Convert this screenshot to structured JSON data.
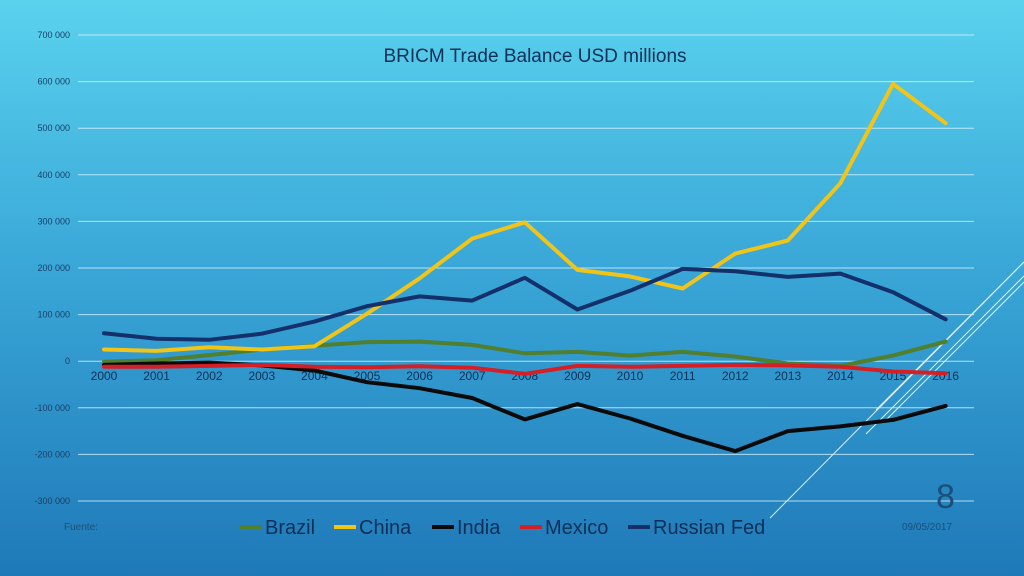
{
  "slide": {
    "number": "8",
    "source_label": "Fuente:",
    "date": "09/05/2017"
  },
  "chart_data": {
    "type": "line",
    "title": "BRICM Trade Balance USD millions",
    "xlabel": "",
    "ylabel": "",
    "x": [
      "2000",
      "2001",
      "2002",
      "2003",
      "2004",
      "2005",
      "2006",
      "2007",
      "2008",
      "2009",
      "2010",
      "2011",
      "2012",
      "2013",
      "2014",
      "2015",
      "2016"
    ],
    "ylim": [
      -300000,
      700000
    ],
    "yticks": [
      700000,
      600000,
      500000,
      400000,
      300000,
      200000,
      100000,
      0,
      -100000,
      -200000,
      -300000
    ],
    "ytick_labels": [
      "700 000",
      "600 000",
      "500 000",
      "400 000",
      "300 000",
      "200 000",
      "100 000",
      "0",
      "-100 000",
      "-200 000",
      "-300 000"
    ],
    "grid": true,
    "legend_position": "bottom",
    "series": [
      {
        "name": "Brazil",
        "color": "#4f7f2f",
        "values": [
          -1000,
          2000,
          13000,
          25000,
          33000,
          41000,
          42000,
          35000,
          17000,
          20000,
          12000,
          20000,
          10000,
          -5000,
          -10000,
          12000,
          42000
        ]
      },
      {
        "name": "China",
        "color": "#f2c418",
        "values": [
          25000,
          22000,
          30000,
          25000,
          32000,
          102000,
          178000,
          263000,
          298000,
          196000,
          182000,
          156000,
          231000,
          259000,
          382000,
          595000,
          511000
        ]
      },
      {
        "name": "India",
        "color": "#0a0a0a",
        "values": [
          -8000,
          -5000,
          -3000,
          -9000,
          -20000,
          -45000,
          -58000,
          -79000,
          -125000,
          -92000,
          -123000,
          -160000,
          -193000,
          -150000,
          -140000,
          -126000,
          -96000
        ]
      },
      {
        "name": "Mexico",
        "color": "#d41f26",
        "values": [
          -12000,
          -12000,
          -10000,
          -8000,
          -12000,
          -13000,
          -11000,
          -14000,
          -27000,
          -10000,
          -12000,
          -10000,
          -8000,
          -9000,
          -12000,
          -22000,
          -26000
        ]
      },
      {
        "name": "Russian Fed",
        "color": "#13306b",
        "values": [
          60000,
          48000,
          46000,
          59000,
          85000,
          118000,
          139000,
          130000,
          179000,
          111000,
          151000,
          198000,
          193000,
          181000,
          188000,
          148000,
          90000
        ]
      }
    ]
  }
}
